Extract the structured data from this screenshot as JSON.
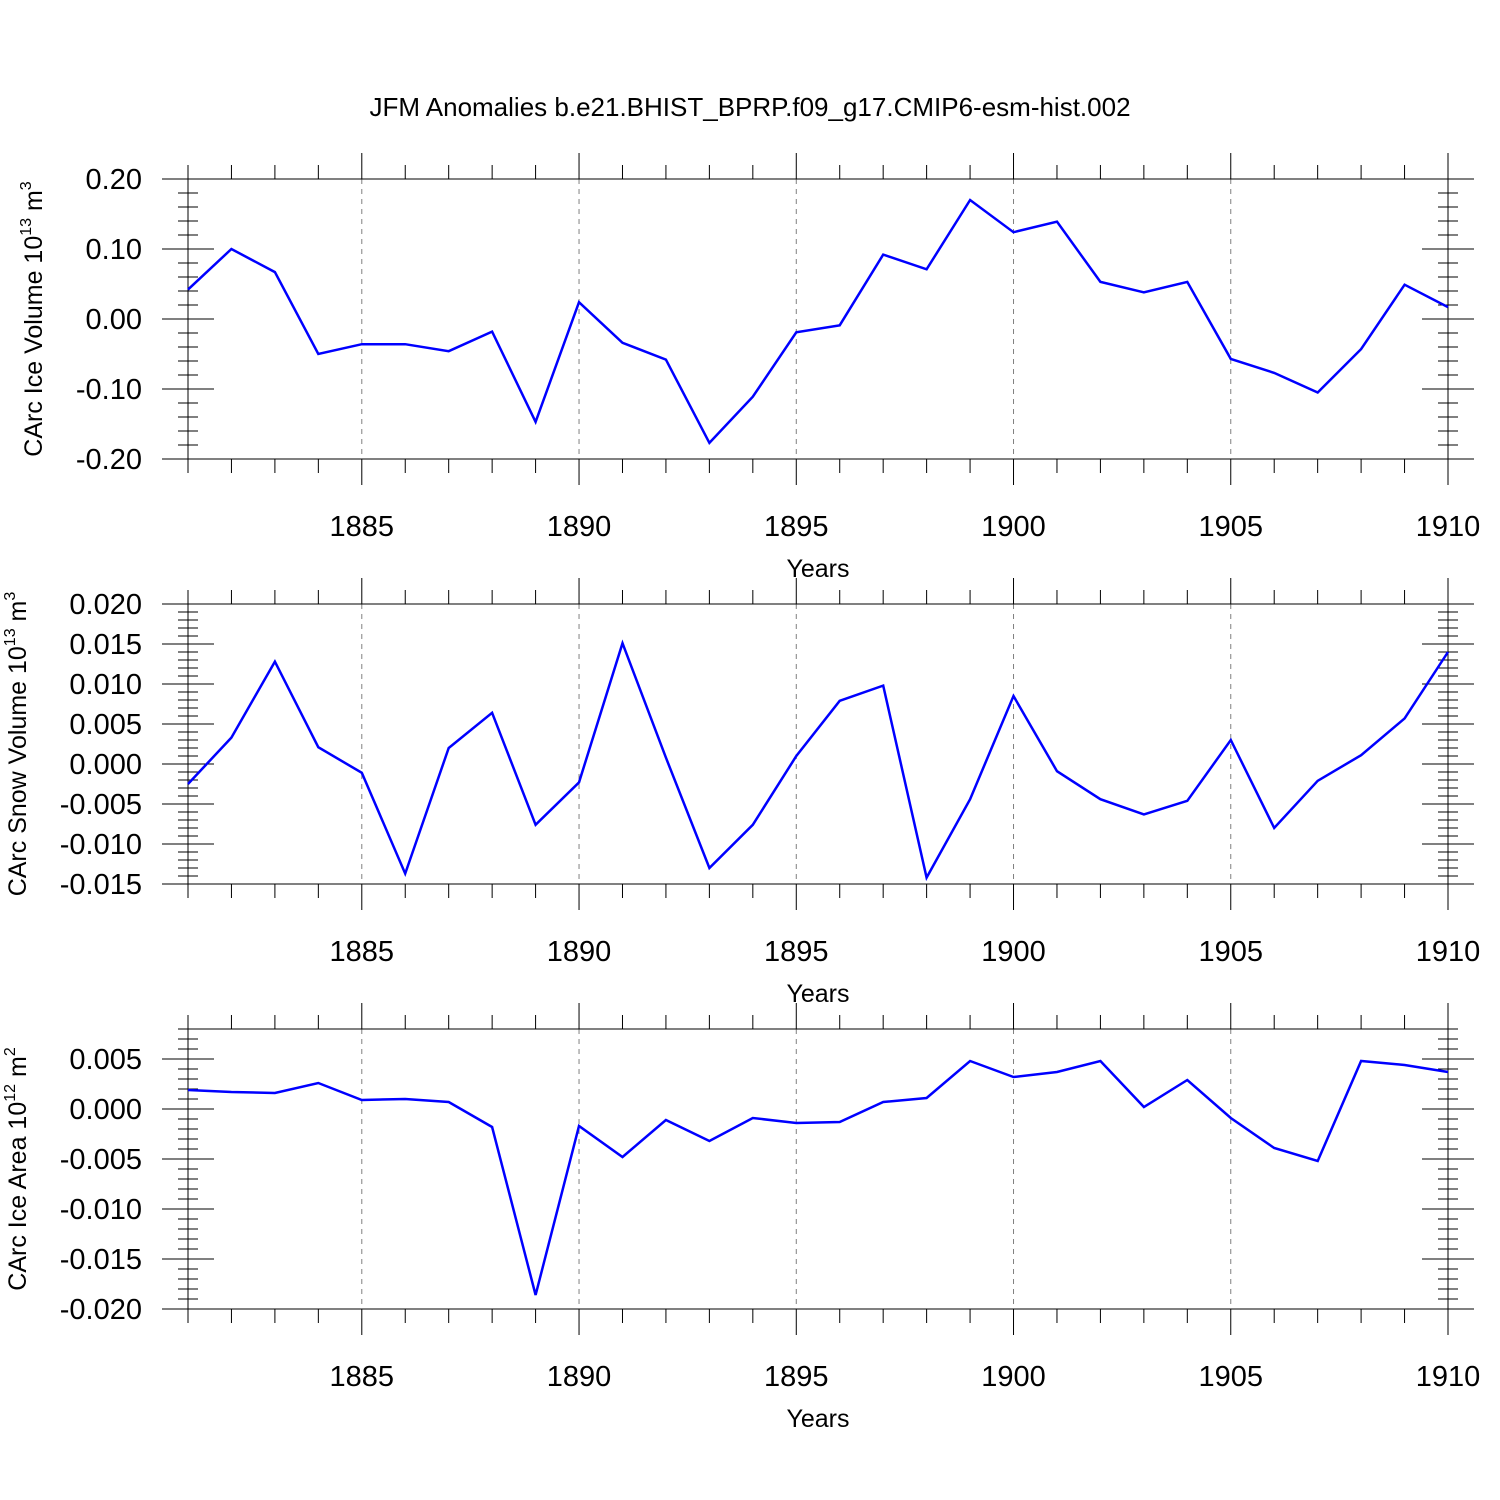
{
  "title": "JFM Anomalies b.e21.BHIST_BPRP.f09_g17.CMIP6-esm-hist.002",
  "line_color": "#0000ff",
  "chart_data": [
    {
      "type": "line",
      "ylabel": "CArc Ice Volume 10",
      "ylabel_exp": "13",
      "ylabel_unit": " m",
      "ylabel_unit_exp": "3",
      "xlabel": "Years",
      "xlim": [
        1881,
        1910
      ],
      "ylim": [
        -0.2,
        0.2
      ],
      "xticks": [
        1885,
        1890,
        1895,
        1900,
        1905,
        1910
      ],
      "yticks": [
        0.2,
        0.1,
        0.0,
        -0.1,
        -0.2
      ],
      "ytick_labels": [
        "0.20",
        "0.10",
        "0.00",
        "-0.10",
        "-0.20"
      ],
      "grid_x": true,
      "x": [
        1881,
        1882,
        1883,
        1884,
        1885,
        1886,
        1887,
        1888,
        1889,
        1890,
        1891,
        1892,
        1893,
        1894,
        1895,
        1896,
        1897,
        1898,
        1899,
        1900,
        1901,
        1902,
        1903,
        1904,
        1905,
        1906,
        1907,
        1908,
        1909,
        1910
      ],
      "y": [
        0.042,
        0.1,
        0.067,
        -0.05,
        -0.036,
        -0.036,
        -0.046,
        -0.018,
        -0.147,
        0.024,
        -0.034,
        -0.058,
        -0.177,
        -0.111,
        -0.019,
        -0.009,
        0.092,
        0.071,
        0.17,
        0.124,
        0.139,
        0.053,
        0.038,
        0.053,
        -0.057,
        -0.077,
        -0.105,
        -0.043,
        0.049,
        0.017
      ]
    },
    {
      "type": "line",
      "ylabel": "CArc Snow Volume 10",
      "ylabel_exp": "13",
      "ylabel_unit": " m",
      "ylabel_unit_exp": "3",
      "xlabel": "Years",
      "xlim": [
        1881,
        1910
      ],
      "ylim": [
        -0.015,
        0.02
      ],
      "xticks": [
        1885,
        1890,
        1895,
        1900,
        1905,
        1910
      ],
      "yticks": [
        0.02,
        0.015,
        0.01,
        0.005,
        0.0,
        -0.005,
        -0.01,
        -0.015
      ],
      "ytick_labels": [
        "0.020",
        "0.015",
        "0.010",
        "0.005",
        "0.000",
        "-0.005",
        "-0.010",
        "-0.015"
      ],
      "grid_x": true,
      "x": [
        1881,
        1882,
        1883,
        1884,
        1885,
        1886,
        1887,
        1888,
        1889,
        1890,
        1891,
        1892,
        1893,
        1894,
        1895,
        1896,
        1897,
        1898,
        1899,
        1900,
        1901,
        1902,
        1903,
        1904,
        1905,
        1906,
        1907,
        1908,
        1909,
        1910
      ],
      "y": [
        -0.0025,
        0.0033,
        0.0128,
        0.0021,
        -0.0011,
        -0.0137,
        0.002,
        0.0064,
        -0.0076,
        -0.0023,
        0.0151,
        0.0008,
        -0.013,
        -0.0076,
        0.001,
        0.0079,
        0.0098,
        -0.0142,
        -0.0044,
        0.0085,
        -0.0009,
        -0.0044,
        -0.0063,
        -0.0046,
        0.003,
        -0.008,
        -0.0021,
        0.0011,
        0.0057,
        0.014
      ]
    },
    {
      "type": "line",
      "ylabel": "CArc Ice Area 10",
      "ylabel_exp": "12",
      "ylabel_unit": " m",
      "ylabel_unit_exp": "2",
      "xlabel": "Years",
      "xlim": [
        1881,
        1910
      ],
      "ylim": [
        -0.02,
        0.008
      ],
      "xticks": [
        1885,
        1890,
        1895,
        1900,
        1905,
        1910
      ],
      "yticks": [
        0.005,
        0.0,
        -0.005,
        -0.01,
        -0.015,
        -0.02
      ],
      "ytick_labels": [
        "0.005",
        "0.000",
        "-0.005",
        "-0.010",
        "-0.015",
        "-0.020"
      ],
      "grid_x": true,
      "x": [
        1881,
        1882,
        1883,
        1884,
        1885,
        1886,
        1887,
        1888,
        1889,
        1890,
        1891,
        1892,
        1893,
        1894,
        1895,
        1896,
        1897,
        1898,
        1899,
        1900,
        1901,
        1902,
        1903,
        1904,
        1905,
        1906,
        1907,
        1908,
        1909,
        1910
      ],
      "y": [
        0.0019,
        0.0017,
        0.0016,
        0.0026,
        0.0009,
        0.001,
        0.0007,
        -0.0018,
        -0.0186,
        -0.0017,
        -0.0048,
        -0.0011,
        -0.0032,
        -0.0009,
        -0.0014,
        -0.0013,
        0.0007,
        0.0011,
        0.0048,
        0.0032,
        0.0037,
        0.0048,
        0.0002,
        0.0029,
        -0.0009,
        -0.0039,
        -0.0052,
        0.0048,
        0.0044,
        0.0037
      ]
    }
  ]
}
